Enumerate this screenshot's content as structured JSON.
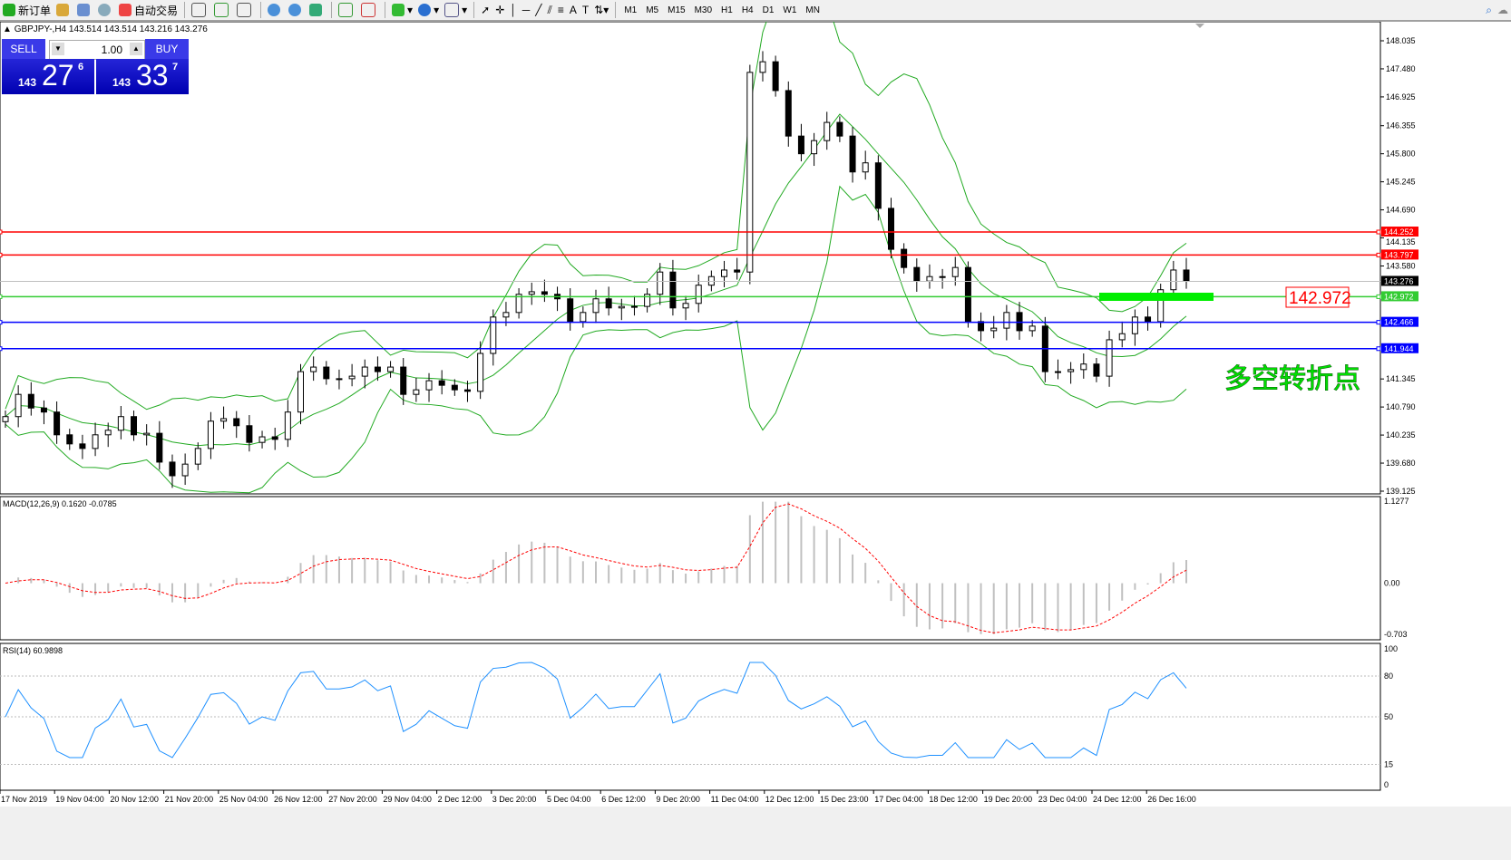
{
  "toolbar": {
    "new_order": "新订单",
    "auto_trading": "自动交易",
    "timeframes": [
      "M1",
      "M5",
      "M15",
      "M30",
      "H1",
      "H4",
      "D1",
      "W1",
      "MN"
    ]
  },
  "chart_header": "GBPJPY-,H4  143.514 143.514 143.216 143.276",
  "trade_panel": {
    "sell_label": "SELL",
    "buy_label": "BUY",
    "lot": "1.00",
    "sell_prefix": "143",
    "sell_big": "27",
    "sell_pip": "6",
    "buy_prefix": "143",
    "buy_big": "33",
    "buy_pip": "7"
  },
  "colors": {
    "candle": "#000000",
    "bands": "#22aa22",
    "resistance": "#ff0000",
    "pivot": "#33cc33",
    "support": "#0000ff",
    "rsi": "#1e90ff",
    "macd_signal": "#ff0000",
    "macd_hist": "#c0c0c0"
  },
  "annotation": {
    "label": "142.972",
    "text": "多空转折点"
  },
  "chart_data": [
    {
      "type": "candlestick",
      "symbol": "GBPJPY-",
      "timeframe": "H4",
      "ylim": [
        139.125,
        148.035
      ],
      "y_ticks": [
        "148.035",
        "147.480",
        "146.925",
        "146.355",
        "145.800",
        "145.245",
        "144.690",
        "144.135",
        "143.580",
        "141.345",
        "140.790",
        "140.235",
        "139.680",
        "139.125"
      ],
      "x_ticks": [
        "17 Nov 2019",
        "19 Nov 04:00",
        "20 Nov 12:00",
        "21 Nov 20:00",
        "25 Nov 04:00",
        "26 Nov 12:00",
        "27 Nov 20:00",
        "29 Nov 04:00",
        "2 Dec 12:00",
        "3 Dec 20:00",
        "5 Dec 04:00",
        "6 Dec 12:00",
        "9 Dec 20:00",
        "11 Dec 04:00",
        "12 Dec 12:00",
        "15 Dec 23:00",
        "17 Dec 04:00",
        "18 Dec 12:00",
        "19 Dec 20:00",
        "23 Dec 04:00",
        "24 Dec 12:00",
        "26 Dec 16:00"
      ],
      "closes": [
        140.6,
        141.04,
        140.77,
        140.69,
        140.24,
        140.06,
        139.97,
        140.24,
        140.33,
        140.6,
        140.24,
        140.27,
        139.7,
        139.43,
        139.66,
        139.97,
        140.51,
        140.56,
        140.42,
        140.09,
        140.2,
        140.15,
        140.69,
        141.49,
        141.58,
        141.35,
        141.35,
        141.4,
        141.58,
        141.49,
        141.58,
        141.04,
        141.13,
        141.31,
        141.22,
        141.13,
        141.1,
        141.85,
        142.57,
        142.66,
        143.02,
        143.07,
        143.02,
        142.93,
        142.48,
        142.66,
        142.93,
        142.75,
        142.78,
        142.78,
        143.02,
        143.46,
        142.75,
        142.84,
        143.2,
        143.37,
        143.5,
        143.46,
        147.41,
        147.62,
        147.05,
        146.15,
        145.8,
        146.06,
        146.42,
        146.15,
        145.44,
        145.62,
        144.72,
        143.91,
        143.55,
        143.28,
        143.37,
        143.37,
        143.55,
        142.48,
        142.3,
        142.35,
        142.66,
        142.3,
        142.39,
        141.49,
        141.49,
        141.53,
        141.64,
        141.4,
        142.12,
        142.24,
        142.57,
        142.48,
        143.11,
        143.5,
        143.28
      ],
      "hlines": [
        {
          "price": 144.252,
          "label": "144.252",
          "color": "#ff0000"
        },
        {
          "price": 143.797,
          "label": "143.797",
          "color": "#ff0000"
        },
        {
          "price": 143.276,
          "label": "143.276",
          "color": "#000000"
        },
        {
          "price": 142.972,
          "label": "142.972",
          "color": "#33cc33"
        },
        {
          "price": 142.466,
          "label": "142.466",
          "color": "#0000ff"
        },
        {
          "price": 141.944,
          "label": "141.944",
          "color": "#0000ff"
        }
      ]
    },
    {
      "type": "bar",
      "name": "MACD(12,26,9) 0.1620 -0.0785",
      "ylim": [
        -0.703,
        1.1277
      ],
      "y_ticks": [
        "1.1277",
        "0.00",
        "-0.703"
      ]
    },
    {
      "type": "line",
      "name": "RSI(14) 60.9898",
      "ylim": [
        0,
        100
      ],
      "y_ticks": [
        "100",
        "80",
        "50",
        "15",
        "0"
      ]
    }
  ]
}
